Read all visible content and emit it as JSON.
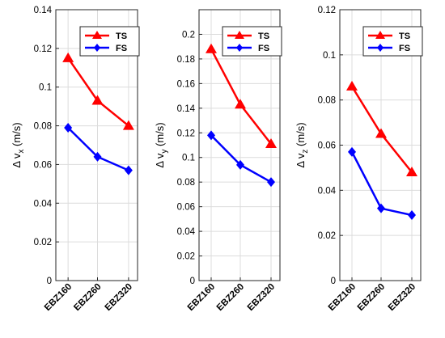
{
  "chart_data": [
    {
      "type": "line",
      "categories": [
        "EBZ160",
        "EBZ260",
        "EBZ320"
      ],
      "ylabel": {
        "prefix": "Δ v",
        "subscript": "x",
        "suffix": " (m/s)"
      },
      "ylim": [
        0,
        0.14
      ],
      "yticks": [
        "0",
        "0.02",
        "0.04",
        "0.06",
        "0.08",
        "0.1",
        "0.12",
        "0.14"
      ],
      "grid": true,
      "legend_position": "top-right",
      "series": [
        {
          "name": "TS",
          "color": "#ff0000",
          "marker": "triangle",
          "values": [
            0.115,
            0.093,
            0.08
          ]
        },
        {
          "name": "FS",
          "color": "#0000ff",
          "marker": "diamond",
          "values": [
            0.079,
            0.064,
            0.057
          ]
        }
      ]
    },
    {
      "type": "line",
      "categories": [
        "EBZ160",
        "EBZ260",
        "EBZ320"
      ],
      "ylabel": {
        "prefix": "Δ v",
        "subscript": "y",
        "suffix": " (m/s)"
      },
      "ylim": [
        0,
        0.22
      ],
      "yticks": [
        "0",
        "0.02",
        "0.04",
        "0.06",
        "0.08",
        "0.1",
        "0.12",
        "0.14",
        "0.16",
        "0.18",
        "0.2"
      ],
      "grid": true,
      "legend_position": "top-right",
      "series": [
        {
          "name": "TS",
          "color": "#ff0000",
          "marker": "triangle",
          "values": [
            0.188,
            0.143,
            0.111
          ]
        },
        {
          "name": "FS",
          "color": "#0000ff",
          "marker": "diamond",
          "values": [
            0.118,
            0.094,
            0.08
          ]
        }
      ]
    },
    {
      "type": "line",
      "categories": [
        "EBZ160",
        "EBZ260",
        "EBZ320"
      ],
      "ylabel": {
        "prefix": "Δ v",
        "subscript": "z",
        "suffix": " (m/s)"
      },
      "ylim": [
        0,
        0.12
      ],
      "yticks": [
        "0",
        "0.02",
        "0.04",
        "0.06",
        "0.08",
        "0.1",
        "0.12"
      ],
      "grid": true,
      "legend_position": "top-right",
      "series": [
        {
          "name": "TS",
          "color": "#ff0000",
          "marker": "triangle",
          "values": [
            0.086,
            0.065,
            0.048
          ]
        },
        {
          "name": "FS",
          "color": "#0000ff",
          "marker": "diamond",
          "values": [
            0.057,
            0.032,
            0.029
          ]
        }
      ]
    }
  ]
}
